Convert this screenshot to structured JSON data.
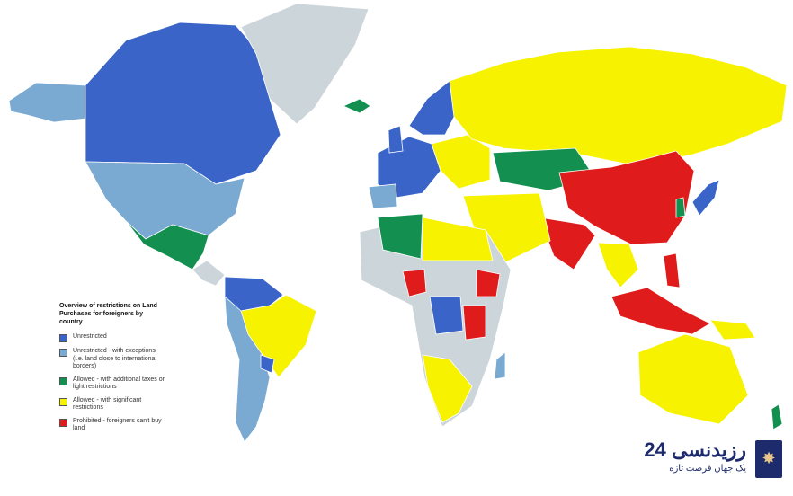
{
  "colors": {
    "unrestricted": "#3a64c8",
    "unrestricted_exceptions": "#7aaad2",
    "allowed_additional": "#13904f",
    "allowed_significant": "#f7f200",
    "prohibited": "#e01b1b",
    "no_data": "#ccd5da"
  },
  "legend": {
    "title": "Overview of restrictions on Land Purchases for foreigners by country",
    "items": [
      {
        "key": "unrestricted",
        "label": "Unrestricted"
      },
      {
        "key": "unrestricted_exceptions",
        "label": "Unrestricted - with exceptions (i.e. land close to international borders)"
      },
      {
        "key": "allowed_additional",
        "label": "Allowed - with additional taxes or light restrictions"
      },
      {
        "key": "allowed_significant",
        "label": "Allowed - with significant restrictions"
      },
      {
        "key": "prohibited",
        "label": "Prohibited - foreigners can't buy land"
      }
    ]
  },
  "logo": {
    "name": "رزیدنسی 24",
    "tagline": "یک جهان فرصت تازه",
    "icon": "star-book-icon"
  }
}
